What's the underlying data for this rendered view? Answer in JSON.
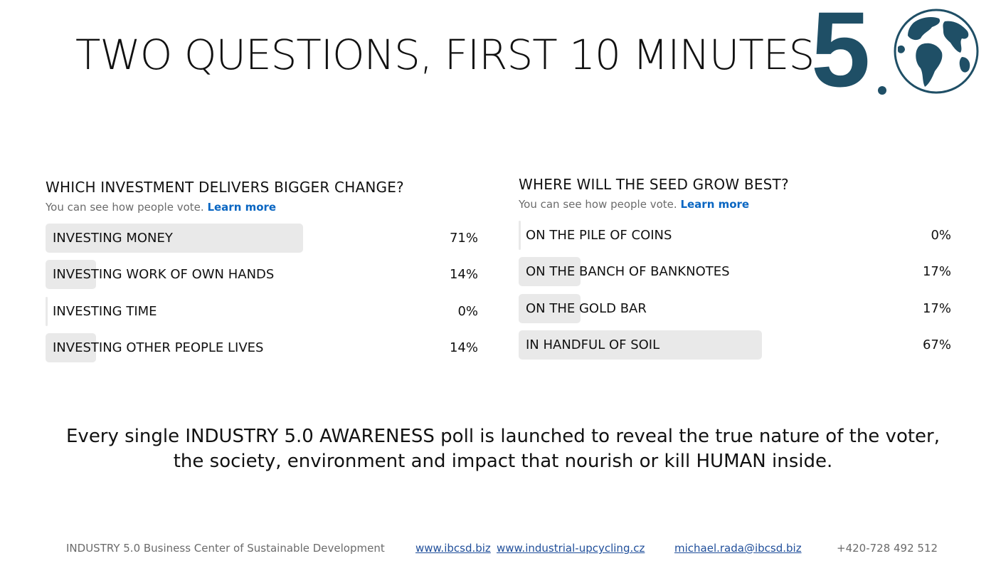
{
  "colors": {
    "brand": "#1f4f66",
    "bar_fill": "#e9e9e9",
    "link": "#0a66c2",
    "footer_link": "#1f4e9a"
  },
  "title": "TWO QUESTIONS, FIRST 10 MINUTES",
  "logo": {
    "number": "5",
    "icon": "globe-icon"
  },
  "polls": [
    {
      "question": "WHICH INVESTMENT DELIVERS BIGGER CHANGE?",
      "subtitle": "You can see how people vote.",
      "learn_more": "Learn more",
      "options": [
        {
          "label": "INVESTING MONEY",
          "percent": "71%",
          "share": 0.71
        },
        {
          "label": "INVESTING WORK OF OWN HANDS",
          "percent": "14%",
          "share": 0.14
        },
        {
          "label": "INVESTING TIME",
          "percent": "0%",
          "share": 0.0
        },
        {
          "label": "INVESTING OTHER PEOPLE LIVES",
          "percent": "14%",
          "share": 0.14
        }
      ]
    },
    {
      "question": "WHERE WILL THE SEED GROW BEST?",
      "subtitle": "You can see how people vote.",
      "learn_more": "Learn more",
      "options": [
        {
          "label": "ON THE PILE OF COINS",
          "percent": "0%",
          "share": 0.0
        },
        {
          "label": "ON THE BANCH OF BANKNOTES",
          "percent": "17%",
          "share": 0.17
        },
        {
          "label": "ON THE GOLD BAR",
          "percent": "17%",
          "share": 0.17
        },
        {
          "label": "IN HANDFUL OF SOIL",
          "percent": "67%",
          "share": 0.67
        }
      ]
    }
  ],
  "statement": {
    "line1": "Every single INDUSTRY 5.0 AWARENESS poll is launched to reveal the true nature of the voter,",
    "line2": "the society, environment and impact that nourish or kill HUMAN inside."
  },
  "footer": {
    "org": "INDUSTRY 5.0 Business Center of Sustainable Development",
    "website1": "www.ibcsd.biz",
    "website2": "www.industrial-upcycling.cz",
    "email": "michael.rada@ibcsd.biz",
    "phone": "+420-728 492 512"
  }
}
